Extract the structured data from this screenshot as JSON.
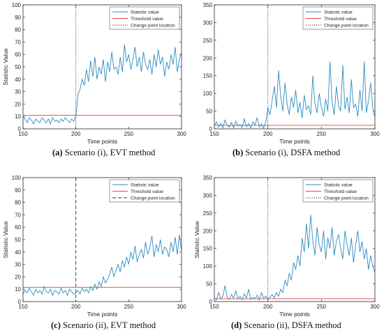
{
  "captions": [
    {
      "tag": "(a)",
      "text": "Scenario (i), EVT method"
    },
    {
      "tag": "(b)",
      "text": "Scenario (i), DSFA method"
    },
    {
      "tag": "(c)",
      "text": "Scenario (ii), EVT method"
    },
    {
      "tag": "(d)",
      "text": "Scenario (ii), DSFA method"
    }
  ],
  "chart_data": [
    {
      "type": "line",
      "xlabel": "Time points",
      "ylabel": "Statistic Value",
      "xlim": [
        150,
        300
      ],
      "ylim": [
        0,
        100
      ],
      "xticks": [
        150,
        200,
        250,
        300
      ],
      "yticks": [
        0,
        10,
        20,
        30,
        40,
        50,
        60,
        70,
        80,
        90,
        100
      ],
      "legend": {
        "position": "top-right",
        "entries": [
          "Statistic value",
          "Threshold value",
          "Change point location"
        ]
      },
      "threshold": 11,
      "change_point": 200,
      "change_point_style": "dotted",
      "series": [
        {
          "name": "Statistic value",
          "color": "#2e8bc0",
          "x": [
            150,
            152,
            154,
            156,
            158,
            160,
            162,
            164,
            166,
            168,
            170,
            172,
            174,
            176,
            178,
            180,
            182,
            184,
            186,
            188,
            190,
            192,
            194,
            196,
            198,
            200,
            202,
            204,
            206,
            208,
            210,
            212,
            214,
            216,
            218,
            220,
            222,
            224,
            226,
            228,
            230,
            232,
            234,
            236,
            238,
            240,
            242,
            244,
            246,
            248,
            250,
            252,
            254,
            256,
            258,
            260,
            262,
            264,
            266,
            268,
            270,
            272,
            274,
            276,
            278,
            280,
            282,
            284,
            286,
            288,
            290,
            292,
            294,
            296,
            298,
            300
          ],
          "values": [
            10,
            8,
            5,
            9,
            7,
            4,
            8,
            6,
            5,
            9,
            7,
            5,
            8,
            4,
            9,
            6,
            7,
            5,
            8,
            6,
            9,
            7,
            5,
            8,
            6,
            10,
            28,
            32,
            40,
            35,
            48,
            38,
            55,
            42,
            58,
            40,
            50,
            44,
            56,
            38,
            54,
            46,
            62,
            48,
            50,
            44,
            58,
            46,
            68,
            54,
            60,
            48,
            56,
            66,
            50,
            58,
            46,
            62,
            52,
            48,
            56,
            44,
            60,
            50,
            64,
            52,
            58,
            42,
            54,
            48,
            60,
            52,
            66,
            46,
            56,
            62
          ]
        }
      ]
    },
    {
      "type": "line",
      "xlabel": "Time points",
      "ylabel": "",
      "xlim": [
        150,
        300
      ],
      "ylim": [
        0,
        350
      ],
      "xticks": [
        150,
        200,
        250,
        300
      ],
      "yticks": [
        0,
        50,
        100,
        150,
        200,
        250,
        300,
        350
      ],
      "legend": {
        "position": "top-right",
        "entries": [
          "Statistic value",
          "Threshold value",
          "Change point location"
        ]
      },
      "threshold": 10,
      "change_point": 200,
      "change_point_style": "dotted",
      "series": [
        {
          "name": "Statistic value",
          "color": "#2e8bc0",
          "x": [
            150,
            152,
            154,
            156,
            158,
            160,
            162,
            164,
            166,
            168,
            170,
            172,
            174,
            176,
            178,
            180,
            182,
            184,
            186,
            188,
            190,
            192,
            194,
            196,
            198,
            200,
            202,
            204,
            206,
            208,
            210,
            212,
            214,
            216,
            218,
            220,
            222,
            224,
            226,
            228,
            230,
            232,
            234,
            236,
            238,
            240,
            242,
            244,
            246,
            248,
            250,
            252,
            254,
            256,
            258,
            260,
            262,
            264,
            266,
            268,
            270,
            272,
            274,
            276,
            278,
            280,
            282,
            284,
            286,
            288,
            290,
            292,
            294,
            296,
            298,
            300
          ],
          "values": [
            8,
            20,
            5,
            15,
            3,
            25,
            10,
            5,
            18,
            2,
            22,
            8,
            12,
            4,
            28,
            6,
            15,
            3,
            20,
            10,
            32,
            5,
            14,
            2,
            18,
            60,
            40,
            80,
            120,
            60,
            165,
            90,
            50,
            130,
            70,
            40,
            90,
            60,
            110,
            45,
            75,
            30,
            95,
            55,
            65,
            40,
            150,
            70,
            45,
            100,
            60,
            35,
            85,
            50,
            190,
            75,
            40,
            120,
            65,
            50,
            180,
            55,
            90,
            45,
            140,
            60,
            70,
            35,
            110,
            50,
            190,
            45,
            80,
            130,
            60,
            30
          ]
        }
      ]
    },
    {
      "type": "line",
      "xlabel": "Time points",
      "ylabel": "Statistic Value",
      "xlim": [
        150,
        300
      ],
      "ylim": [
        0,
        100
      ],
      "xticks": [
        150,
        200,
        250,
        300
      ],
      "yticks": [
        0,
        10,
        20,
        30,
        40,
        50,
        60,
        70,
        80,
        90,
        100
      ],
      "legend": {
        "position": "top-right",
        "entries": [
          "Statistic value",
          "Threshold value",
          "Change point location"
        ]
      },
      "threshold": 11.5,
      "change_point": 200,
      "change_point_style": "dashed",
      "series": [
        {
          "name": "Statistic value",
          "color": "#2e8bc0",
          "x": [
            150,
            152,
            154,
            156,
            158,
            160,
            162,
            164,
            166,
            168,
            170,
            172,
            174,
            176,
            178,
            180,
            182,
            184,
            186,
            188,
            190,
            192,
            194,
            196,
            198,
            200,
            202,
            204,
            206,
            208,
            210,
            212,
            214,
            216,
            218,
            220,
            222,
            224,
            226,
            228,
            230,
            232,
            234,
            236,
            238,
            240,
            242,
            244,
            246,
            248,
            250,
            252,
            254,
            256,
            258,
            260,
            262,
            264,
            266,
            268,
            270,
            272,
            274,
            276,
            278,
            280,
            282,
            284,
            286,
            288,
            290,
            292,
            294,
            296,
            298,
            300
          ],
          "values": [
            6,
            9,
            7,
            11,
            8,
            5,
            10,
            7,
            9,
            6,
            12,
            8,
            7,
            10,
            5,
            9,
            8,
            6,
            11,
            7,
            9,
            5,
            10,
            8,
            6,
            7,
            9,
            6,
            11,
            8,
            10,
            7,
            12,
            9,
            14,
            10,
            16,
            12,
            20,
            15,
            18,
            22,
            28,
            20,
            25,
            30,
            24,
            33,
            28,
            36,
            30,
            40,
            34,
            45,
            32,
            38,
            42,
            35,
            48,
            38,
            44,
            53,
            36,
            46,
            40,
            50,
            38,
            44,
            42,
            36,
            48,
            40,
            52,
            38,
            54,
            40
          ]
        }
      ]
    },
    {
      "type": "line",
      "xlabel": "Time points",
      "ylabel": "Statistic Value",
      "xlim": [
        150,
        300
      ],
      "ylim": [
        0,
        350
      ],
      "xticks": [
        150,
        200,
        250,
        300
      ],
      "yticks": [
        0,
        50,
        100,
        150,
        200,
        250,
        300,
        350
      ],
      "legend": {
        "position": "top-right",
        "entries": [
          "Statistic value",
          "Threshold value",
          "Change point location"
        ]
      },
      "threshold": 8,
      "change_point": 200,
      "change_point_style": "dotted",
      "series": [
        {
          "name": "Statistic value",
          "color": "#2e8bc0",
          "x": [
            150,
            152,
            154,
            156,
            158,
            160,
            162,
            164,
            166,
            168,
            170,
            172,
            174,
            176,
            178,
            180,
            182,
            184,
            186,
            188,
            190,
            192,
            194,
            196,
            198,
            200,
            202,
            204,
            206,
            208,
            210,
            212,
            214,
            216,
            218,
            220,
            222,
            224,
            226,
            228,
            230,
            232,
            234,
            236,
            238,
            240,
            242,
            244,
            246,
            248,
            250,
            252,
            254,
            256,
            258,
            260,
            262,
            264,
            266,
            268,
            270,
            272,
            274,
            276,
            278,
            280,
            282,
            284,
            286,
            288,
            290,
            292,
            294,
            296,
            298,
            300
          ],
          "values": [
            10,
            5,
            25,
            8,
            15,
            45,
            12,
            6,
            20,
            10,
            30,
            8,
            15,
            5,
            22,
            10,
            35,
            6,
            12,
            8,
            18,
            5,
            25,
            10,
            15,
            8,
            12,
            20,
            10,
            25,
            15,
            35,
            25,
            60,
            45,
            80,
            60,
            110,
            90,
            130,
            100,
            180,
            140,
            220,
            150,
            245,
            170,
            130,
            210,
            160,
            140,
            200,
            120,
            180,
            150,
            210,
            130,
            170,
            190,
            150,
            120,
            200,
            160,
            130,
            180,
            110,
            160,
            200,
            140,
            170,
            120,
            150,
            90,
            130,
            100,
            80
          ]
        }
      ]
    }
  ]
}
